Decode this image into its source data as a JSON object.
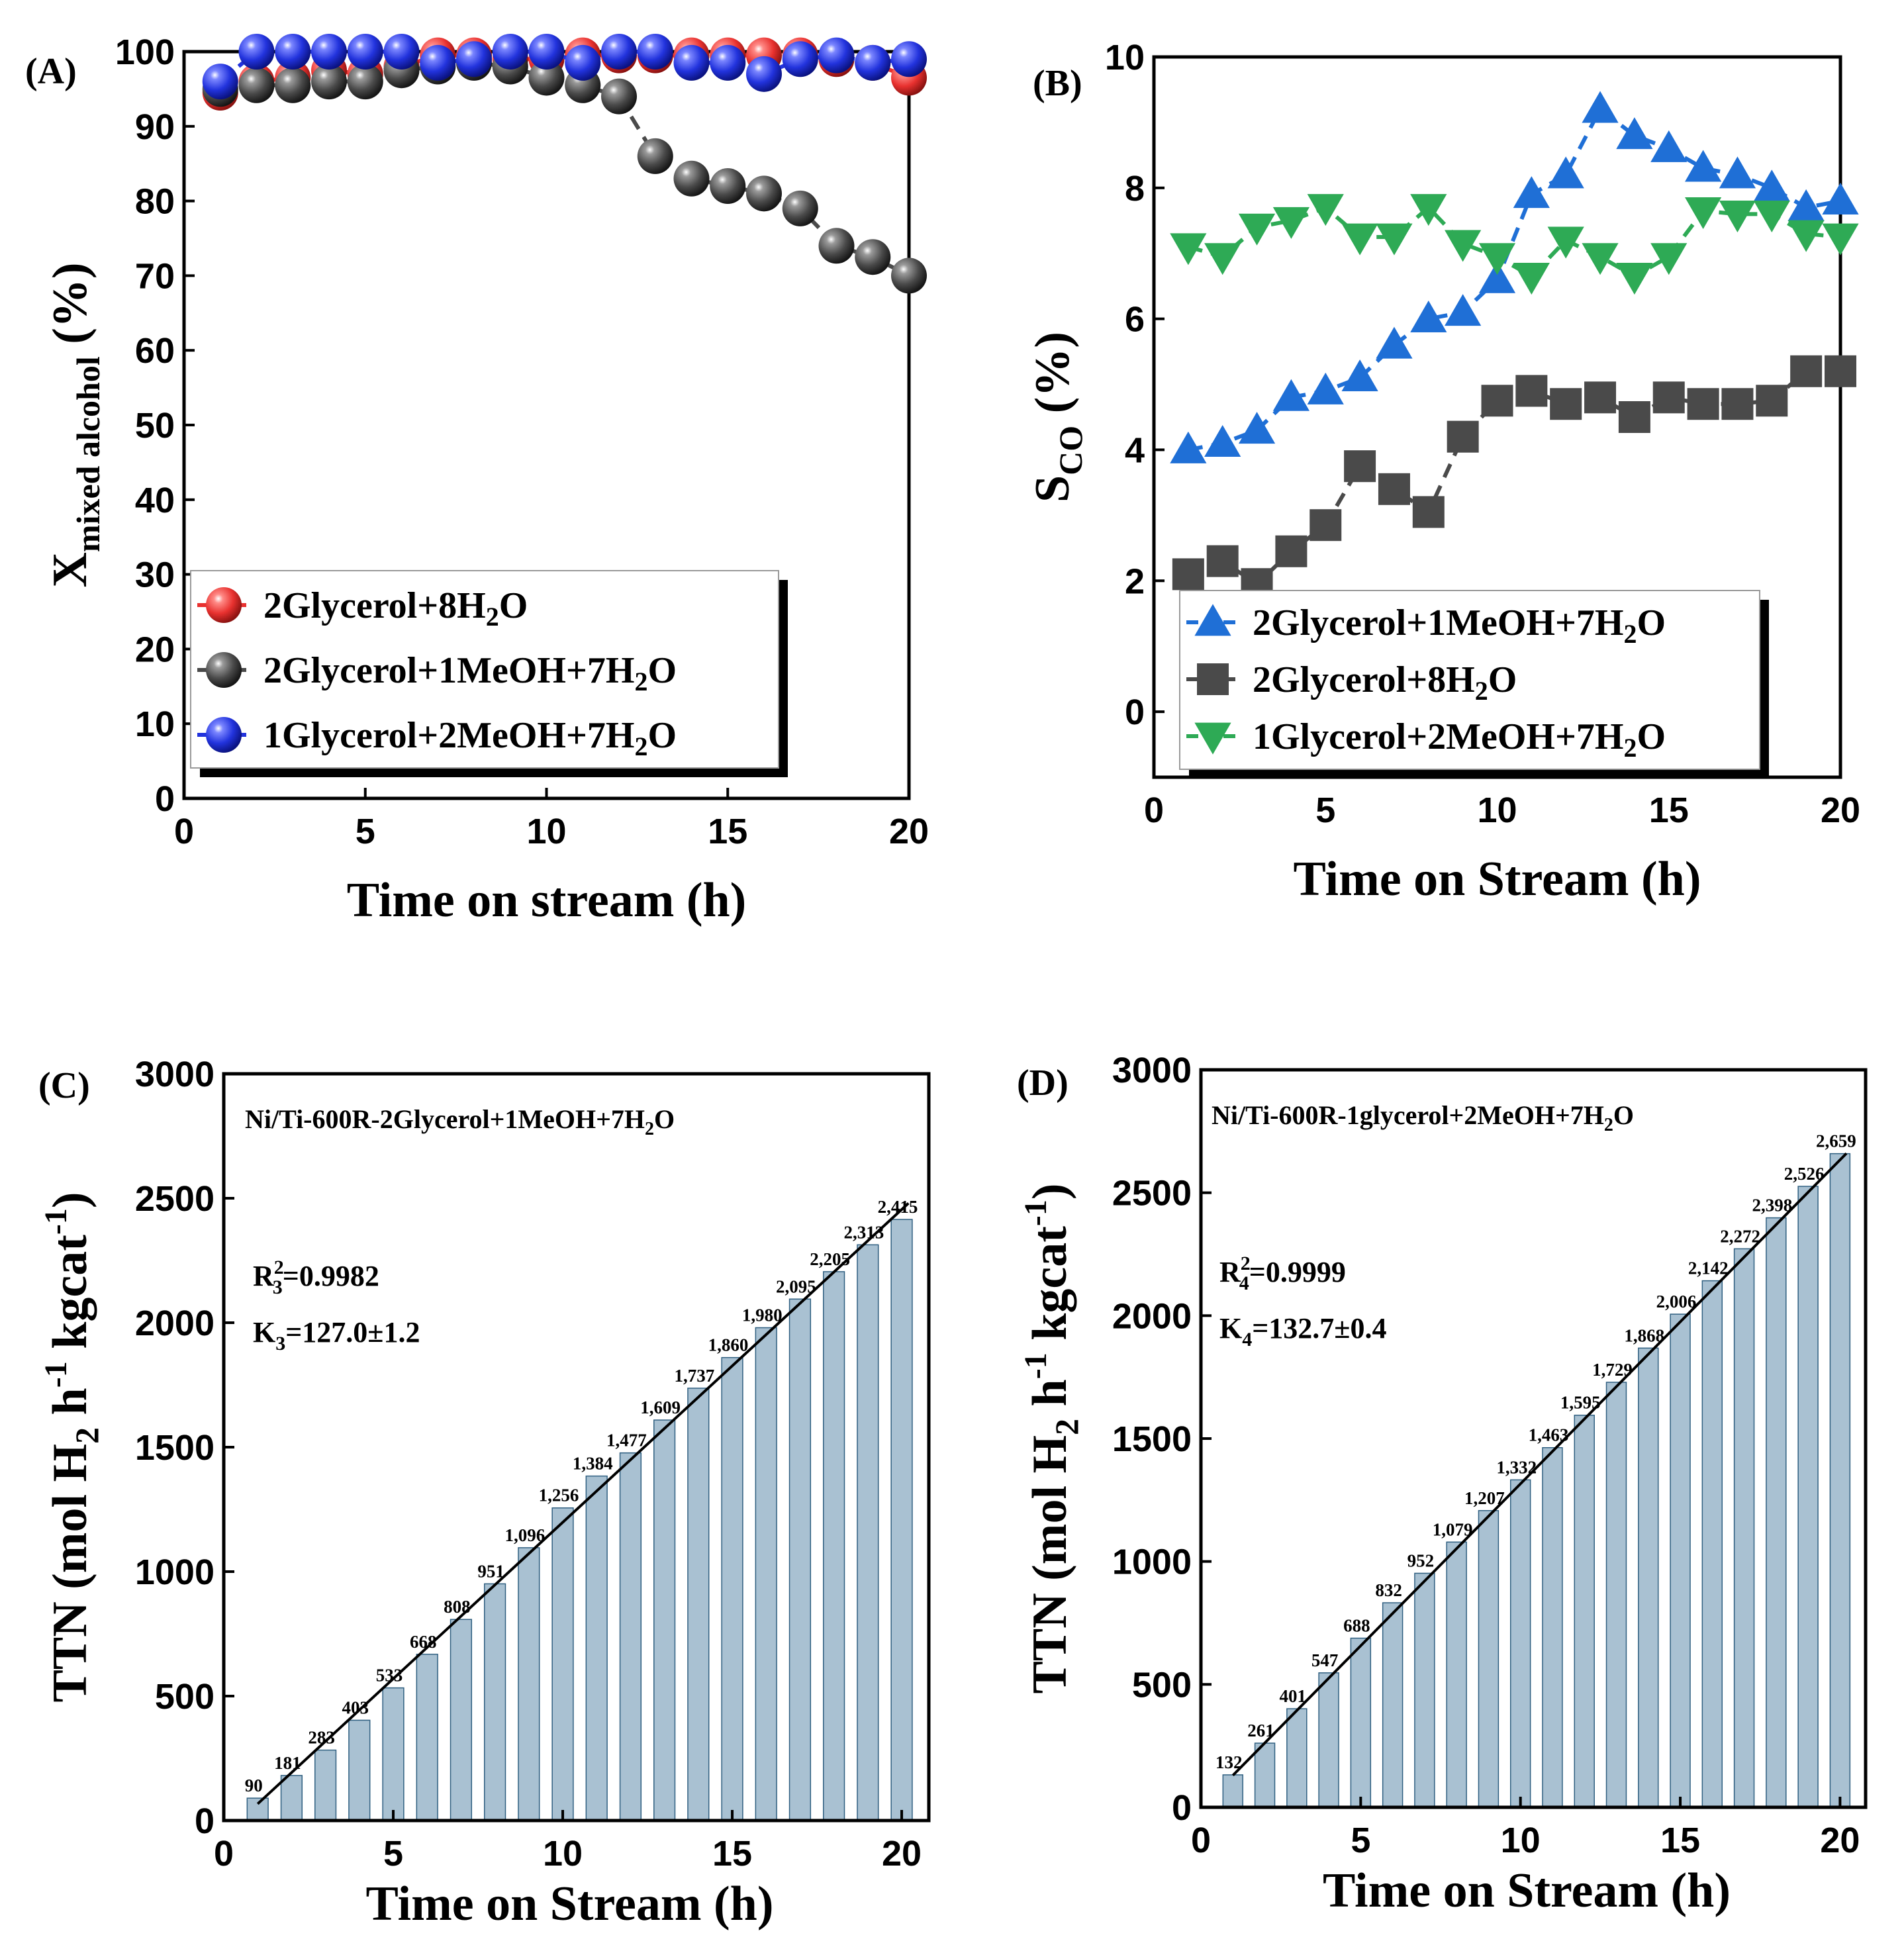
{
  "chart_data": [
    {
      "panel": "(A)",
      "type": "line",
      "xlabel": "Time on stream (h)",
      "ylabel_main": "X",
      "ylabel_sub": "mixed alcohol",
      "ylabel_suffix": " (%)",
      "xlim": [
        0,
        20
      ],
      "ylim": [
        0,
        100
      ],
      "xticks": [
        0,
        5,
        10,
        15,
        20
      ],
      "yticks": [
        0,
        10,
        20,
        30,
        40,
        50,
        60,
        70,
        80,
        90,
        100
      ],
      "legend_position": "bottom-left",
      "series": [
        {
          "name": "2Glycerol+8H2O",
          "label_pre": "2Glycerol+8H",
          "label_sub": "2",
          "label_post": "O",
          "color": "#e8312f",
          "marker": "sphere",
          "x": [
            1,
            2,
            3,
            4,
            5,
            6,
            7,
            8,
            9,
            10,
            11,
            12,
            13,
            14,
            15,
            16,
            17,
            18,
            19,
            20
          ],
          "y": [
            94.5,
            96,
            96.5,
            97.5,
            97,
            98,
            99.5,
            99.5,
            99,
            99,
            99.5,
            99.5,
            99.5,
            99.5,
            99.5,
            99.5,
            99.5,
            99,
            98.5,
            96.5
          ]
        },
        {
          "name": "2Glycerol+1MeOH+7H2O",
          "label_pre": "2Glycerol+1MeOH+7H",
          "label_sub": "2",
          "label_post": "O",
          "color": "#4a4a4a",
          "marker": "sphere",
          "x": [
            1,
            2,
            3,
            4,
            5,
            6,
            7,
            8,
            9,
            10,
            11,
            12,
            13,
            14,
            15,
            16,
            17,
            18,
            19,
            20
          ],
          "y": [
            95,
            95.5,
            95.5,
            96,
            96,
            97.5,
            98,
            98.5,
            98,
            96.5,
            95.5,
            94,
            86,
            83,
            82,
            81,
            79,
            74,
            72.5,
            70
          ]
        },
        {
          "name": "1Glycerol+2MeOH+7H2O",
          "label_pre": "1Glycerol+2MeOH+7H",
          "label_sub": "2",
          "label_post": "O",
          "color": "#2233dd",
          "marker": "sphere",
          "x": [
            1,
            2,
            3,
            4,
            5,
            6,
            7,
            8,
            9,
            10,
            11,
            12,
            13,
            14,
            15,
            16,
            17,
            18,
            19,
            20
          ],
          "y": [
            96,
            100,
            100,
            100,
            100,
            100,
            98.5,
            99,
            100,
            100,
            98.5,
            100,
            100,
            98.5,
            98.5,
            97,
            99,
            99.5,
            98.5,
            99
          ]
        }
      ]
    },
    {
      "panel": "(B)",
      "type": "line",
      "xlabel": "Time on Stream (h)",
      "ylabel_main": "S",
      "ylabel_sub": "CO",
      "ylabel_suffix": " (%)",
      "xlim": [
        0,
        20
      ],
      "ylim": [
        -1,
        10
      ],
      "xticks": [
        0,
        5,
        10,
        15,
        20
      ],
      "yticks": [
        0,
        2,
        4,
        6,
        8,
        10
      ],
      "legend_position": "bottom-left",
      "series": [
        {
          "name": "2Glycerol+1MeOH+7H2O",
          "label_pre": "2Glycerol+1MeOH+7H",
          "label_sub": "2",
          "label_post": "O",
          "color": "#1f6fd6",
          "marker": "triangle-up",
          "x": [
            1,
            2,
            3,
            4,
            5,
            6,
            7,
            8,
            9,
            10,
            11,
            12,
            13,
            14,
            15,
            16,
            17,
            18,
            19,
            20
          ],
          "y": [
            4.0,
            4.1,
            4.3,
            4.8,
            4.9,
            5.1,
            5.6,
            6.0,
            6.1,
            6.6,
            7.9,
            8.2,
            9.2,
            8.8,
            8.6,
            8.3,
            8.2,
            8.0,
            7.7,
            7.8
          ]
        },
        {
          "name": "2Glycerol+8H2O",
          "label_pre": "2Glycerol+8H",
          "label_sub": "2",
          "label_post": "O",
          "color": "#4a4a4a",
          "marker": "square",
          "x": [
            1,
            2,
            3,
            4,
            5,
            6,
            7,
            8,
            9,
            10,
            11,
            12,
            13,
            14,
            15,
            16,
            17,
            18,
            19,
            20
          ],
          "y": [
            2.1,
            2.3,
            1.95,
            2.45,
            2.85,
            3.75,
            3.4,
            3.05,
            4.2,
            4.75,
            4.9,
            4.7,
            4.8,
            4.5,
            4.8,
            4.7,
            4.7,
            4.75,
            5.2,
            5.2
          ]
        },
        {
          "name": "1Glycerol+2MeOH+7H2O",
          "label_pre": "1Glycerol+2MeOH+7H",
          "label_sub": "2",
          "label_post": "O",
          "color": "#2eaa55",
          "marker": "triangle-down",
          "x": [
            1,
            2,
            3,
            4,
            5,
            6,
            7,
            8,
            9,
            10,
            11,
            12,
            13,
            14,
            15,
            16,
            17,
            18,
            19,
            20
          ],
          "y": [
            7.1,
            6.95,
            7.4,
            7.5,
            7.7,
            7.25,
            7.25,
            7.7,
            7.15,
            6.95,
            6.65,
            7.2,
            6.95,
            6.65,
            6.95,
            7.65,
            7.6,
            7.6,
            7.3,
            7.25
          ]
        }
      ]
    },
    {
      "panel": "(C)",
      "type": "bar",
      "xlabel": "Time on Stream (h)",
      "ylabel_pre": "TTN (mol H",
      "ylabel_sub": "2",
      "ylabel_mid": " h",
      "ylabel_sup1": "-1",
      "ylabel_mid2": " kgcat",
      "ylabel_sup2": "-1",
      "ylabel_post": ")",
      "inset_pre": "Ni/Ti-600R-2Glycerol+1MeOH+7H",
      "inset_sub": "2",
      "inset_post": "O",
      "r2_pre": "R",
      "r2_sup": "2",
      "r2_sub": "3",
      "r2_post": "=0.9982",
      "k_pre": "K",
      "k_sub": "3",
      "k_post": "=127.0±1.2",
      "xlim": [
        0,
        20.8
      ],
      "ylim": [
        0,
        3000
      ],
      "xticks": [
        0,
        5,
        10,
        15,
        20
      ],
      "yticks": [
        0,
        500,
        1000,
        1500,
        2000,
        2500,
        3000
      ],
      "bar_color": "#a9c1d2",
      "fit_line": {
        "x": [
          1,
          20.2
        ],
        "y": [
          67,
          2480
        ]
      },
      "x": [
        1,
        2,
        3,
        4,
        5,
        6,
        7,
        8,
        9,
        10,
        11,
        12,
        13,
        14,
        15,
        16,
        17,
        18,
        19,
        20
      ],
      "values": [
        90,
        181,
        283,
        403,
        533,
        668,
        808,
        951,
        1096,
        1256,
        1384,
        1477,
        1609,
        1737,
        1860,
        1980,
        2095,
        2205,
        2313,
        2415
      ],
      "labels": [
        "90",
        "181",
        "283",
        "403",
        "533",
        "668",
        "808",
        "951",
        "1,096",
        "1,256",
        "1,384",
        "1,477",
        "1,609",
        "1,737",
        "1,860",
        "1,980",
        "2,095",
        "2,205",
        "2,313",
        "2,415"
      ]
    },
    {
      "panel": "(D)",
      "type": "bar",
      "xlabel": "Time on Stream (h)",
      "ylabel_pre": "TTN (mol H",
      "ylabel_sub": "2",
      "ylabel_mid": " h",
      "ylabel_sup1": "-1",
      "ylabel_mid2": " kgcat",
      "ylabel_sup2": "-1",
      "ylabel_post": ")",
      "inset_pre": "Ni/Ti-600R-1glycerol+2MeOH+7H",
      "inset_sub": "2",
      "inset_post": "O",
      "r2_pre": "R",
      "r2_sup": "2",
      "r2_sub": "4",
      "r2_post": "=0.9999",
      "k_pre": "K",
      "k_sub": "4",
      "k_post": "=132.7±0.4",
      "xlim": [
        0,
        20.8
      ],
      "ylim": [
        0,
        3000
      ],
      "xticks": [
        0,
        5,
        10,
        15,
        20
      ],
      "yticks": [
        0,
        500,
        1000,
        1500,
        2000,
        2500,
        3000
      ],
      "bar_color": "#a9c1d2",
      "fit_line": {
        "x": [
          1,
          20.2
        ],
        "y": [
          130,
          2660
        ]
      },
      "x": [
        1,
        2,
        3,
        4,
        5,
        6,
        7,
        8,
        9,
        10,
        11,
        12,
        13,
        14,
        15,
        16,
        17,
        18,
        19,
        20
      ],
      "values": [
        132,
        261,
        401,
        547,
        688,
        832,
        952,
        1079,
        1207,
        1332,
        1463,
        1595,
        1729,
        1868,
        2006,
        2142,
        2272,
        2398,
        2526,
        2659
      ],
      "labels": [
        "132",
        "261",
        "401",
        "547",
        "688",
        "832",
        "952",
        "1,079",
        "1,207",
        "1,332",
        "1,463",
        "1,595",
        "1,729",
        "1,868",
        "2,006",
        "2,142",
        "2,272",
        "2,398",
        "2,526",
        "2,659"
      ]
    }
  ]
}
